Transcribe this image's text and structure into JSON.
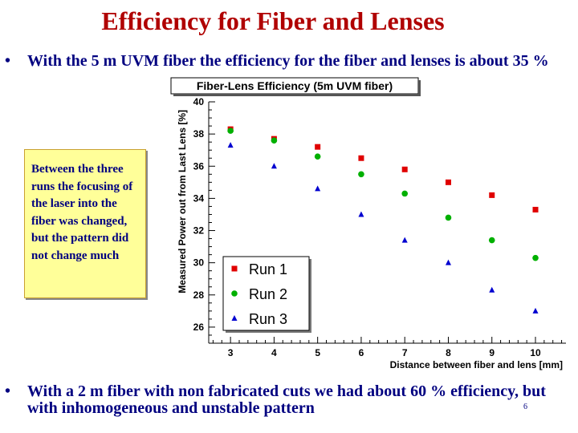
{
  "slide": {
    "title": "Efficiency for Fiber and Lenses",
    "bullet_char": "•",
    "bullet1": "With the 5 m UVM fiber the efficiency for the fiber and lenses is about 35 %",
    "note": "Between the three runs the focusing of the laser into the fiber was changed, but the pattern did not change much",
    "bullet2": "With a 2 m fiber with non fabricated cuts we had about 60 % efficiency, but with inhomogeneous and unstable pattern",
    "page_number": "6"
  },
  "chart_data": {
    "type": "scatter",
    "title": "Fiber-Lens Efficiency (5m UVM fiber)",
    "xlabel": "Distance between fiber and lens [mm]",
    "ylabel": "Measured Power out from Last Lens [%]",
    "xlim": [
      2.5,
      10.7
    ],
    "ylim": [
      25,
      40
    ],
    "xticks": [
      3,
      4,
      5,
      6,
      7,
      8,
      9,
      10
    ],
    "yticks": [
      26,
      28,
      30,
      32,
      34,
      36,
      38,
      40
    ],
    "grid": false,
    "legend_position": "bottom-left",
    "series": [
      {
        "name": "Run 1",
        "marker": "square",
        "color": "#e00000",
        "x": [
          3,
          4,
          5,
          6,
          7,
          8,
          9,
          10
        ],
        "y": [
          38.3,
          37.7,
          37.2,
          36.5,
          35.8,
          35.0,
          34.2,
          33.3
        ]
      },
      {
        "name": "Run 2",
        "marker": "circle",
        "color": "#00b000",
        "x": [
          3,
          4,
          5,
          6,
          7,
          8,
          9,
          10
        ],
        "y": [
          38.2,
          37.6,
          36.6,
          35.5,
          34.3,
          32.8,
          31.4,
          30.3
        ]
      },
      {
        "name": "Run 3",
        "marker": "triangle",
        "color": "#0000d0",
        "x": [
          3,
          4,
          5,
          6,
          7,
          8,
          9,
          10
        ],
        "y": [
          37.3,
          36.0,
          34.6,
          33.0,
          31.4,
          30.0,
          28.3,
          27.0
        ]
      }
    ]
  }
}
